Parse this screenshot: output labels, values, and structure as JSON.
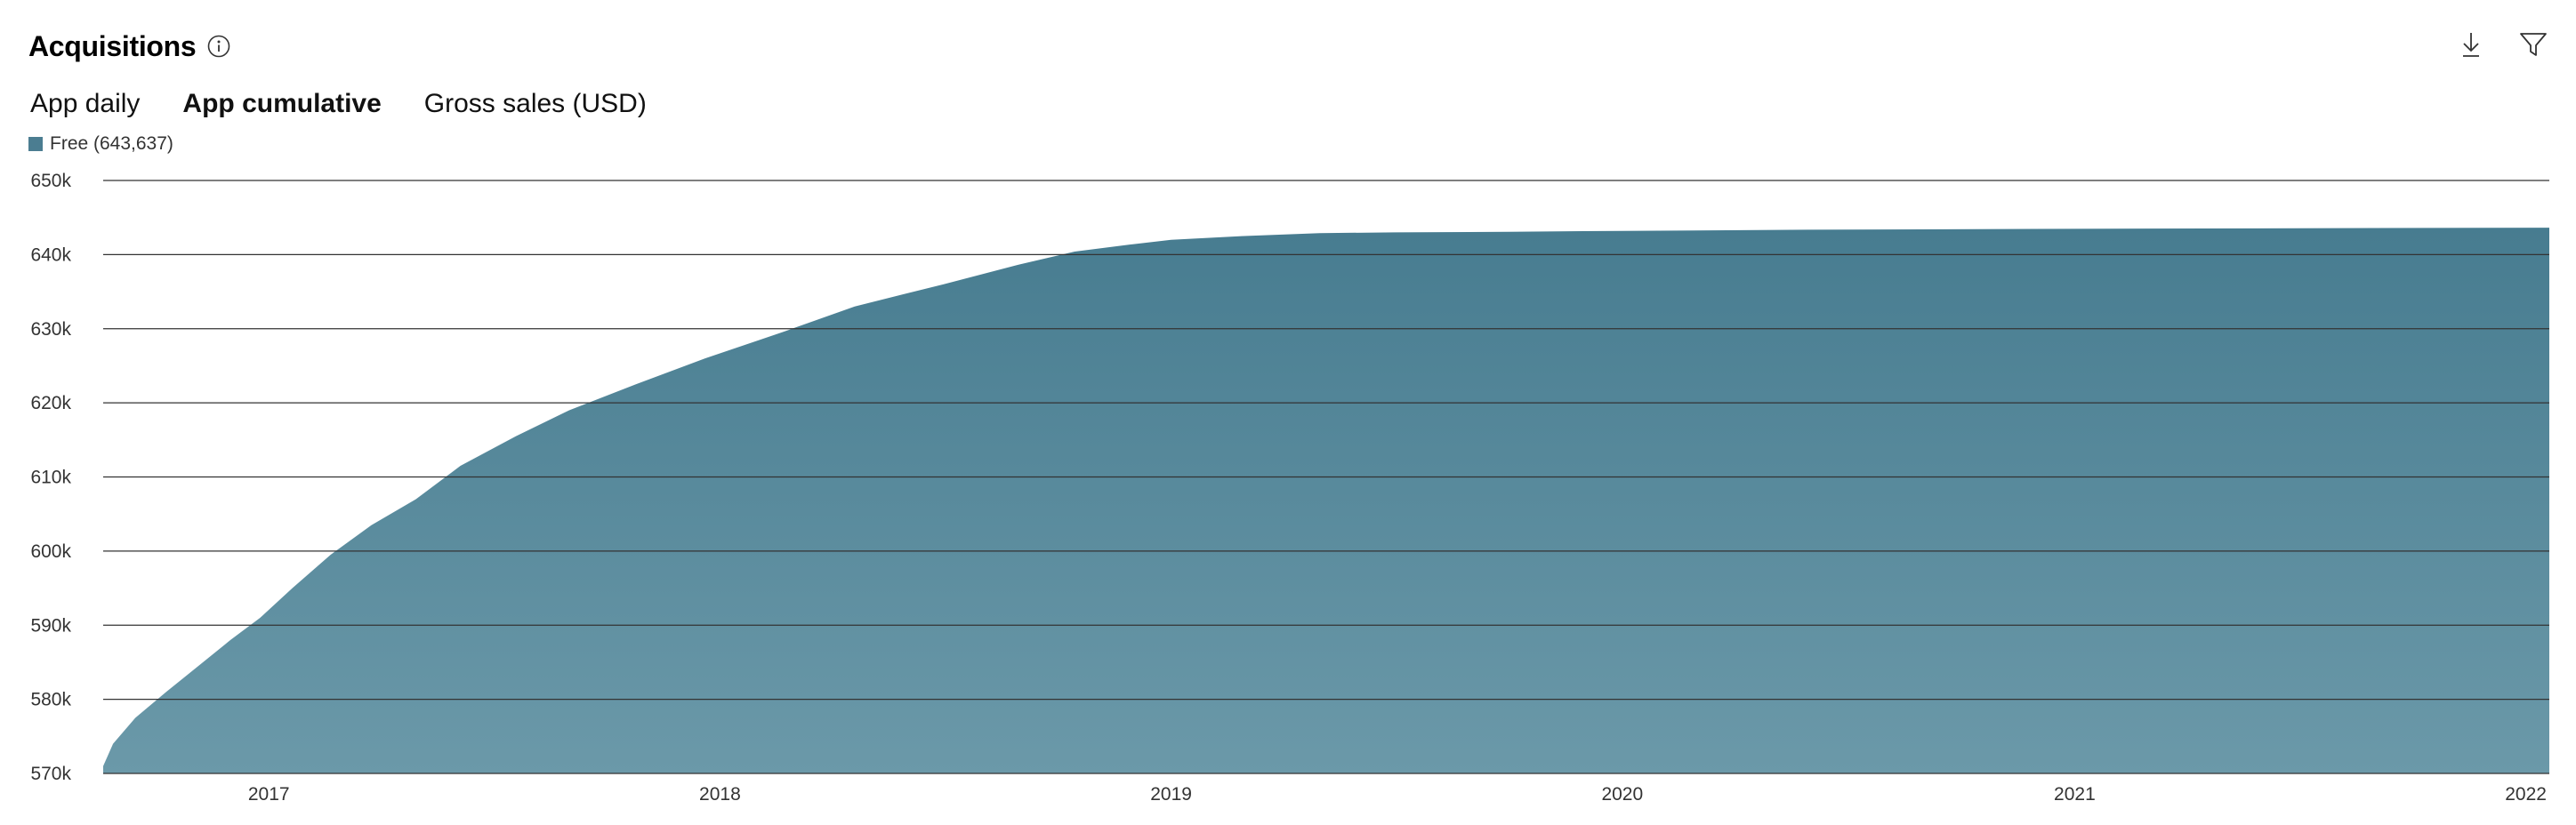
{
  "header": {
    "title": "Acquisitions"
  },
  "tabs": [
    {
      "label": "App daily",
      "active": false
    },
    {
      "label": "App cumulative",
      "active": true
    },
    {
      "label": "Gross sales (USD)",
      "active": false
    }
  ],
  "colors": {
    "accent": "#4b7d91",
    "area_top": "#477c90",
    "area_bottom": "#6b99a9",
    "gridline": "#333333"
  },
  "icons": {
    "info": "info-icon",
    "download": "download-icon",
    "filter": "filter-icon"
  },
  "chart_data": {
    "type": "area",
    "title": "",
    "xlabel": "",
    "ylabel": "",
    "legend": {
      "position": "top-left",
      "entries": [
        "Free (643,637)"
      ]
    },
    "grid": true,
    "ylim": [
      570000,
      650000
    ],
    "xlim": [
      "2016-08-20",
      "2022-01-20"
    ],
    "y_ticks": [
      {
        "value": 570000,
        "label": "570k"
      },
      {
        "value": 580000,
        "label": "580k"
      },
      {
        "value": 590000,
        "label": "590k"
      },
      {
        "value": 600000,
        "label": "600k"
      },
      {
        "value": 610000,
        "label": "610k"
      },
      {
        "value": 620000,
        "label": "620k"
      },
      {
        "value": 630000,
        "label": "630k"
      },
      {
        "value": 640000,
        "label": "640k"
      },
      {
        "value": 650000,
        "label": "650k"
      }
    ],
    "x_ticks": [
      {
        "value": "2017-01-01",
        "label": "2017"
      },
      {
        "value": "2018-01-01",
        "label": "2018"
      },
      {
        "value": "2019-01-01",
        "label": "2019"
      },
      {
        "value": "2020-01-01",
        "label": "2020"
      },
      {
        "value": "2021-01-01",
        "label": "2021"
      },
      {
        "value": "2022-01-01",
        "label": "2022"
      }
    ],
    "series": [
      {
        "name": "Free (643,637)",
        "color": "#4b7d91",
        "points": [
          [
            "2016-08-20",
            571000
          ],
          [
            "2016-08-28",
            574000
          ],
          [
            "2016-09-15",
            577500
          ],
          [
            "2016-10-10",
            581000
          ],
          [
            "2016-11-05",
            584500
          ],
          [
            "2016-12-01",
            588000
          ],
          [
            "2016-12-25",
            591000
          ],
          [
            "2017-01-20",
            595000
          ],
          [
            "2017-02-20",
            599500
          ],
          [
            "2017-03-25",
            603500
          ],
          [
            "2017-04-30",
            607000
          ],
          [
            "2017-06-05",
            611500
          ],
          [
            "2017-07-20",
            615500
          ],
          [
            "2017-09-01",
            619000
          ],
          [
            "2017-10-25",
            622500
          ],
          [
            "2017-12-20",
            626000
          ],
          [
            "2018-02-20",
            629500
          ],
          [
            "2018-04-20",
            633000
          ],
          [
            "2018-07-01",
            636000
          ],
          [
            "2018-09-01",
            638700
          ],
          [
            "2018-10-15",
            640400
          ],
          [
            "2018-12-01",
            641400
          ],
          [
            "2019-01-01",
            642000
          ],
          [
            "2019-03-01",
            642500
          ],
          [
            "2019-05-01",
            642900
          ],
          [
            "2019-07-01",
            643000
          ],
          [
            "2019-10-01",
            643080
          ],
          [
            "2020-01-01",
            643200
          ],
          [
            "2020-06-01",
            643350
          ],
          [
            "2021-01-01",
            643480
          ],
          [
            "2021-07-01",
            643560
          ],
          [
            "2022-01-20",
            643637
          ]
        ]
      }
    ]
  }
}
